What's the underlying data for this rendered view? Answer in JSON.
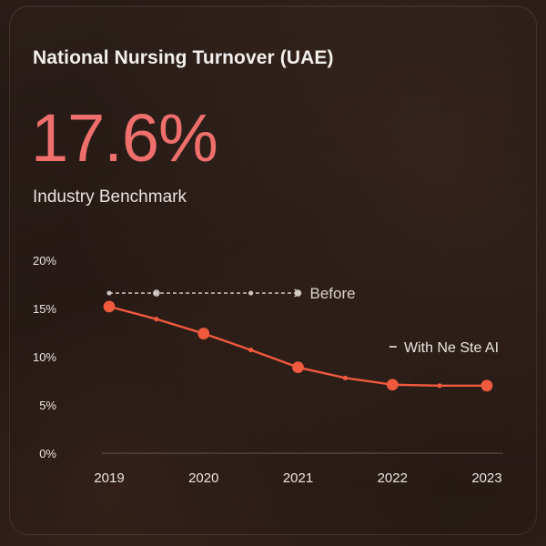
{
  "card": {
    "title": "National Nursing Turnover (UAE)",
    "kpi_value": "17.6%",
    "kpi_label": "Industry Benchmark"
  },
  "colors": {
    "kpi": "#ef6f6c",
    "with_line": "#f05a3e",
    "before_line": "#d9d2cc",
    "axis_text": "#ece6e1",
    "grid": "#5a4a42"
  },
  "chart_data": {
    "type": "line",
    "title": "",
    "xlabel": "",
    "ylabel": "",
    "x_ticks": [
      "2019",
      "2020",
      "2021",
      "2022",
      "2023"
    ],
    "y_ticks": [
      "20%",
      "15%",
      "10%",
      "5%",
      "0%"
    ],
    "xlim": [
      2019,
      2023
    ],
    "ylim": [
      0,
      20
    ],
    "grid": true,
    "series": [
      {
        "name": "Before",
        "style": "dashed",
        "x": [
          2019,
          2019.5,
          2020.5,
          2021
        ],
        "y": [
          16.6,
          16.6,
          16.6,
          16.6
        ],
        "marker_x": [
          2019,
          2019.5,
          2020.5,
          2021
        ],
        "marker_sizes": [
          "small",
          "medium",
          "small",
          "medium"
        ]
      },
      {
        "name": "With Ne Ste AI",
        "style": "solid",
        "x": [
          2019,
          2019.5,
          2020,
          2020.5,
          2021,
          2021.5,
          2022,
          2022.5,
          2023
        ],
        "y": [
          15.2,
          13.9,
          12.4,
          10.7,
          8.9,
          7.8,
          7.1,
          7.0,
          7.0
        ],
        "marker_sizes": [
          "large",
          "small",
          "large",
          "small",
          "large",
          "small",
          "large",
          "small",
          "large"
        ]
      }
    ],
    "legend_placement": "inline"
  }
}
